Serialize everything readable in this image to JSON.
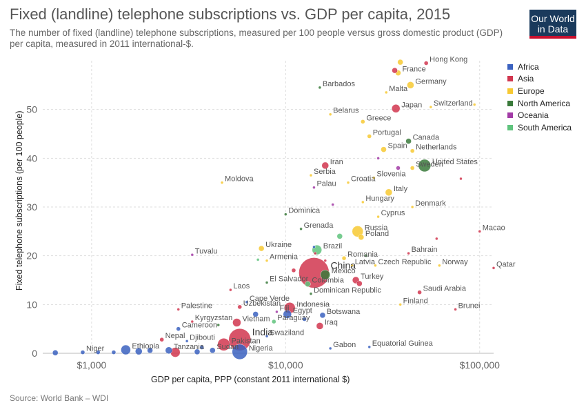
{
  "header": {
    "title": "Fixed (landline) telephone subscriptions vs. GDP per capita, 2015",
    "subtitle": "The number of fixed (landline) telephone subscriptions, measured per 100 people versus gross domestic product (GDP) per capita, measured in 2011 international-$.",
    "logo_line1": "Our World",
    "logo_line2": "in Data"
  },
  "footer": {
    "source": "Source: World Bank – WDI"
  },
  "chart_data": {
    "type": "scatter",
    "xlabel": "GDP per capita, PPP (constant 2011 international $)",
    "ylabel": "Fixed telephone subscriptions (per 100 people)",
    "xscale": "log",
    "xlim": [
      560,
      118000
    ],
    "ylim": [
      0,
      60
    ],
    "x_ticks": [
      {
        "v": 1000,
        "label": "$1,000"
      },
      {
        "v": 10000,
        "label": "$10,000"
      },
      {
        "v": 100000,
        "label": "$100,000"
      }
    ],
    "y_ticks": [
      {
        "v": 0,
        "label": "0"
      },
      {
        "v": 10,
        "label": "10"
      },
      {
        "v": 20,
        "label": "20"
      },
      {
        "v": 30,
        "label": "30"
      },
      {
        "v": 40,
        "label": "40"
      },
      {
        "v": 50,
        "label": "50"
      }
    ],
    "grid": true,
    "legend_position": "right",
    "series": [
      {
        "name": "Africa",
        "color": "#3b62c0"
      },
      {
        "name": "Asia",
        "color": "#d1364f"
      },
      {
        "name": "Europe",
        "color": "#f7c933"
      },
      {
        "name": "North America",
        "color": "#3a7a3b"
      },
      {
        "name": "Oceania",
        "color": "#a23ba6"
      },
      {
        "name": "South America",
        "color": "#5fc37d"
      }
    ],
    "points": [
      {
        "label": "France",
        "x": 38000,
        "y": 57.5,
        "region": "Europe",
        "size": 4
      },
      {
        "label": "Hong Kong",
        "x": 53000,
        "y": 59.5,
        "region": "Asia",
        "size": 3
      },
      {
        "label": "",
        "x": 36500,
        "y": 58,
        "region": "Asia",
        "size": 4
      },
      {
        "label": "",
        "x": 39000,
        "y": 59.7,
        "region": "Europe",
        "size": 4
      },
      {
        "label": "Barbados",
        "x": 15000,
        "y": 54.5,
        "region": "North America",
        "size": 2
      },
      {
        "label": "Germany",
        "x": 44000,
        "y": 55,
        "region": "Europe",
        "size": 5
      },
      {
        "label": "Malta",
        "x": 33000,
        "y": 53.5,
        "region": "Europe",
        "size": 2
      },
      {
        "label": "Japan",
        "x": 37000,
        "y": 50.2,
        "region": "Asia",
        "size": 6
      },
      {
        "label": "Switzerland",
        "x": 56000,
        "y": 50.5,
        "region": "Europe",
        "size": 2
      },
      {
        "label": "",
        "x": 94000,
        "y": 51,
        "region": "Europe",
        "size": 2
      },
      {
        "label": "Belarus",
        "x": 17000,
        "y": 49,
        "region": "Europe",
        "size": 2
      },
      {
        "label": "Greece",
        "x": 25000,
        "y": 47.5,
        "region": "Europe",
        "size": 3
      },
      {
        "label": "Portugal",
        "x": 27000,
        "y": 44.5,
        "region": "Europe",
        "size": 3
      },
      {
        "label": "Canada",
        "x": 43000,
        "y": 43.5,
        "region": "North America",
        "size": 4
      },
      {
        "label": "Spain",
        "x": 32000,
        "y": 41.8,
        "region": "Europe",
        "size": 4
      },
      {
        "label": "Netherlands",
        "x": 45000,
        "y": 41.5,
        "region": "Europe",
        "size": 3
      },
      {
        "label": "United States",
        "x": 52000,
        "y": 38.5,
        "region": "North America",
        "size": 9
      },
      {
        "label": "Sweden",
        "x": 45000,
        "y": 38,
        "region": "Europe",
        "size": 3
      },
      {
        "label": "Iran",
        "x": 16000,
        "y": 38.5,
        "region": "Asia",
        "size": 5
      },
      {
        "label": "Serbia",
        "x": 13500,
        "y": 36.5,
        "region": "Europe",
        "size": 2
      },
      {
        "label": "Slovenia",
        "x": 28500,
        "y": 36,
        "region": "Europe",
        "size": 2
      },
      {
        "label": "Palau",
        "x": 14000,
        "y": 34,
        "region": "Oceania",
        "size": 2
      },
      {
        "label": "Croatia",
        "x": 21000,
        "y": 35,
        "region": "Europe",
        "size": 2
      },
      {
        "label": "Moldova",
        "x": 4700,
        "y": 35,
        "region": "Europe",
        "size": 2
      },
      {
        "label": "",
        "x": 80000,
        "y": 35.8,
        "region": "Asia",
        "size": 2
      },
      {
        "label": "Italy",
        "x": 34000,
        "y": 33,
        "region": "Europe",
        "size": 5
      },
      {
        "label": "Hungary",
        "x": 25000,
        "y": 31,
        "region": "Europe",
        "size": 2
      },
      {
        "label": "Denmark",
        "x": 45000,
        "y": 30,
        "region": "Europe",
        "size": 2
      },
      {
        "label": "Dominica",
        "x": 10000,
        "y": 28.5,
        "region": "North America",
        "size": 2
      },
      {
        "label": "Cyprus",
        "x": 30000,
        "y": 28,
        "region": "Europe",
        "size": 2
      },
      {
        "label": "Grenada",
        "x": 12000,
        "y": 25.5,
        "region": "North America",
        "size": 2
      },
      {
        "label": "Russia",
        "x": 23500,
        "y": 25,
        "region": "Europe",
        "size": 8
      },
      {
        "label": "Poland",
        "x": 24500,
        "y": 23.8,
        "region": "Europe",
        "size": 4
      },
      {
        "label": "Macao",
        "x": 100000,
        "y": 25,
        "region": "Asia",
        "size": 2
      },
      {
        "label": "Ukraine",
        "x": 7500,
        "y": 21.5,
        "region": "Europe",
        "size": 4
      },
      {
        "label": "Brazil",
        "x": 14500,
        "y": 21.2,
        "region": "South America",
        "size": 7
      },
      {
        "label": "Tuvalu",
        "x": 3300,
        "y": 20.2,
        "region": "Oceania",
        "size": 2
      },
      {
        "label": "Bahrain",
        "x": 43000,
        "y": 20.5,
        "region": "Asia",
        "size": 2
      },
      {
        "label": "Romania",
        "x": 20000,
        "y": 19.5,
        "region": "Europe",
        "size": 3
      },
      {
        "label": "Armenia",
        "x": 8000,
        "y": 19,
        "region": "Europe",
        "size": 2
      },
      {
        "label": "China",
        "x": 14000,
        "y": 16.5,
        "region": "Asia",
        "size": 22
      },
      {
        "label": "Latvia",
        "x": 22000,
        "y": 18,
        "region": "Europe",
        "size": 2
      },
      {
        "label": "Czech Republic",
        "x": 29000,
        "y": 18,
        "region": "Europe",
        "size": 2
      },
      {
        "label": "Norway",
        "x": 62000,
        "y": 18,
        "region": "Europe",
        "size": 2
      },
      {
        "label": "Qatar",
        "x": 118000,
        "y": 17.5,
        "region": "Asia",
        "size": 2
      },
      {
        "label": "Mexico",
        "x": 16000,
        "y": 16.1,
        "region": "North America",
        "size": 7
      },
      {
        "label": "El Salvador",
        "x": 8000,
        "y": 14.5,
        "region": "North America",
        "size": 2
      },
      {
        "label": "Colombia",
        "x": 13000,
        "y": 14.2,
        "region": "South America",
        "size": 4
      },
      {
        "label": "Turkey",
        "x": 23000,
        "y": 15,
        "region": "Asia",
        "size": 5
      },
      {
        "label": "",
        "x": 24000,
        "y": 14.3,
        "region": "Asia",
        "size": 4
      },
      {
        "label": "Laos",
        "x": 5200,
        "y": 13,
        "region": "Asia",
        "size": 2
      },
      {
        "label": "Dominican Republic",
        "x": 13500,
        "y": 12.2,
        "region": "North America",
        "size": 2
      },
      {
        "label": "Saudi Arabia",
        "x": 49000,
        "y": 12.5,
        "region": "Asia",
        "size": 3
      },
      {
        "label": "Cape Verde",
        "x": 6300,
        "y": 10.5,
        "region": "Africa",
        "size": 2
      },
      {
        "label": "Uzbekistan",
        "x": 5800,
        "y": 9.5,
        "region": "Asia",
        "size": 3
      },
      {
        "label": "Indonesia",
        "x": 10500,
        "y": 9.3,
        "region": "Asia",
        "size": 8
      },
      {
        "label": "Palestine",
        "x": 2800,
        "y": 9,
        "region": "Asia",
        "size": 2
      },
      {
        "label": "Finland",
        "x": 39000,
        "y": 10,
        "region": "Europe",
        "size": 2
      },
      {
        "label": "Brunei",
        "x": 75000,
        "y": 9,
        "region": "Asia",
        "size": 2
      },
      {
        "label": "Fiji",
        "x": 9000,
        "y": 8.5,
        "region": "Oceania",
        "size": 2
      },
      {
        "label": "Egypt",
        "x": 10200,
        "y": 8,
        "region": "Africa",
        "size": 6
      },
      {
        "label": "Botswana",
        "x": 15500,
        "y": 7.8,
        "region": "Africa",
        "size": 4
      },
      {
        "label": "Kyrgyzstan",
        "x": 3300,
        "y": 6.5,
        "region": "Asia",
        "size": 2
      },
      {
        "label": "Vietnam",
        "x": 5600,
        "y": 6.3,
        "region": "Asia",
        "size": 6
      },
      {
        "label": "Paraguay",
        "x": 8700,
        "y": 6.5,
        "region": "South America",
        "size": 3
      },
      {
        "label": "Iraq",
        "x": 15000,
        "y": 5.6,
        "region": "Asia",
        "size": 5
      },
      {
        "label": "Cameroon",
        "x": 2800,
        "y": 5,
        "region": "Africa",
        "size": 3
      },
      {
        "label": "India",
        "x": 5800,
        "y": 2.8,
        "region": "Asia",
        "size": 16
      },
      {
        "label": "Swaziland",
        "x": 8000,
        "y": 3.5,
        "region": "Africa",
        "size": 2
      },
      {
        "label": "Nepal",
        "x": 2300,
        "y": 2.8,
        "region": "Asia",
        "size": 3
      },
      {
        "label": "Djibouti",
        "x": 3100,
        "y": 2.5,
        "region": "Africa",
        "size": 2
      },
      {
        "label": "Pakistan",
        "x": 4800,
        "y": 1.8,
        "region": "Asia",
        "size": 9
      },
      {
        "label": "Ethiopia",
        "x": 1500,
        "y": 0.7,
        "region": "Africa",
        "size": 7
      },
      {
        "label": "Tanzania",
        "x": 2500,
        "y": 0.6,
        "region": "Africa",
        "size": 5
      },
      {
        "label": "Sudan",
        "x": 4200,
        "y": 0.6,
        "region": "Africa",
        "size": 4
      },
      {
        "label": "Nigeria",
        "x": 5800,
        "y": 0.3,
        "region": "Africa",
        "size": 11
      },
      {
        "label": "",
        "x": 2700,
        "y": 0.2,
        "region": "Asia",
        "size": 7
      },
      {
        "label": "Niger",
        "x": 900,
        "y": 0.2,
        "region": "Africa",
        "size": 3
      },
      {
        "label": "",
        "x": 650,
        "y": 0.1,
        "region": "Africa",
        "size": 4
      },
      {
        "label": "",
        "x": 1080,
        "y": 0.2,
        "region": "Africa",
        "size": 3
      },
      {
        "label": "",
        "x": 1300,
        "y": 0.2,
        "region": "Africa",
        "size": 3
      },
      {
        "label": "",
        "x": 1750,
        "y": 0.4,
        "region": "Africa",
        "size": 5
      },
      {
        "label": "",
        "x": 2000,
        "y": 0.6,
        "region": "Africa",
        "size": 4
      },
      {
        "label": "",
        "x": 3500,
        "y": 0.3,
        "region": "Africa",
        "size": 4
      },
      {
        "label": "Gabon",
        "x": 17000,
        "y": 1,
        "region": "Africa",
        "size": 2
      },
      {
        "label": "Equatorial Guinea",
        "x": 27000,
        "y": 1.3,
        "region": "Africa",
        "size": 2
      },
      {
        "label": "",
        "x": 14000,
        "y": 21.8,
        "region": "Africa",
        "size": 2
      },
      {
        "label": "",
        "x": 14200,
        "y": 20.5,
        "region": "Asia",
        "size": 2
      },
      {
        "label": "",
        "x": 26000,
        "y": 20,
        "region": "North America",
        "size": 2
      },
      {
        "label": "",
        "x": 60000,
        "y": 23.5,
        "region": "Asia",
        "size": 2
      },
      {
        "label": "",
        "x": 17500,
        "y": 30.5,
        "region": "Oceania",
        "size": 2
      },
      {
        "label": "",
        "x": 38000,
        "y": 38,
        "region": "Oceania",
        "size": 3
      },
      {
        "label": "",
        "x": 30000,
        "y": 40,
        "region": "Oceania",
        "size": 2
      },
      {
        "label": "",
        "x": 19000,
        "y": 24,
        "region": "South America",
        "size": 4
      },
      {
        "label": "",
        "x": 11000,
        "y": 17,
        "region": "Asia",
        "size": 3
      },
      {
        "label": "",
        "x": 7200,
        "y": 19.2,
        "region": "South America",
        "size": 2
      },
      {
        "label": "",
        "x": 16000,
        "y": 19,
        "region": "Asia",
        "size": 2
      },
      {
        "label": "",
        "x": 7000,
        "y": 8,
        "region": "Africa",
        "size": 4
      },
      {
        "label": "",
        "x": 12500,
        "y": 7,
        "region": "Africa",
        "size": 3
      },
      {
        "label": "",
        "x": 4500,
        "y": 5.8,
        "region": "North America",
        "size": 2
      },
      {
        "label": "",
        "x": 3700,
        "y": 1.2,
        "region": "Africa",
        "size": 3
      }
    ]
  }
}
